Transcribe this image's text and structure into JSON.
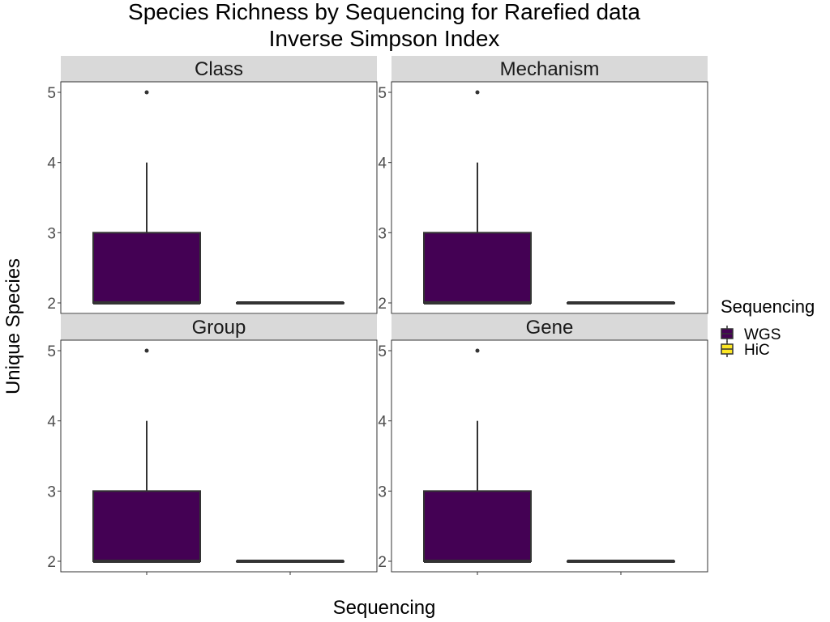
{
  "chart_data": {
    "type": "box",
    "title": "Species Richness by Sequencing for Rarefied data",
    "subtitle": "Inverse Simpson Index",
    "xlabel": "Sequencing",
    "ylabel": "Unique Species",
    "ylim": [
      1.85,
      5.15
    ],
    "yticks": [
      2,
      3,
      4,
      5
    ],
    "grid": false,
    "legend": {
      "title": "Sequencing",
      "position": "right",
      "entries": [
        {
          "label": "WGS",
          "color": "#440154"
        },
        {
          "label": "HiC",
          "color": "#FDE725"
        }
      ]
    },
    "categories": [
      "WGS",
      "HiC"
    ],
    "panels": [
      {
        "label": "Class",
        "boxes": [
          {
            "group": "WGS",
            "min": 2,
            "q1": 2,
            "median": 2,
            "q3": 3,
            "max": 4,
            "outliers": [
              5
            ]
          },
          {
            "group": "HiC",
            "min": 2,
            "q1": 2,
            "median": 2,
            "q3": 2,
            "max": 2,
            "outliers": []
          }
        ]
      },
      {
        "label": "Mechanism",
        "boxes": [
          {
            "group": "WGS",
            "min": 2,
            "q1": 2,
            "median": 2,
            "q3": 3,
            "max": 4,
            "outliers": [
              5
            ]
          },
          {
            "group": "HiC",
            "min": 2,
            "q1": 2,
            "median": 2,
            "q3": 2,
            "max": 2,
            "outliers": []
          }
        ]
      },
      {
        "label": "Group",
        "boxes": [
          {
            "group": "WGS",
            "min": 2,
            "q1": 2,
            "median": 2,
            "q3": 3,
            "max": 4,
            "outliers": [
              5
            ]
          },
          {
            "group": "HiC",
            "min": 2,
            "q1": 2,
            "median": 2,
            "q3": 2,
            "max": 2,
            "outliers": []
          }
        ]
      },
      {
        "label": "Gene",
        "boxes": [
          {
            "group": "WGS",
            "min": 2,
            "q1": 2,
            "median": 2,
            "q3": 3,
            "max": 4,
            "outliers": [
              5
            ]
          },
          {
            "group": "HiC",
            "min": 2,
            "q1": 2,
            "median": 2,
            "q3": 2,
            "max": 2,
            "outliers": []
          }
        ]
      }
    ]
  }
}
